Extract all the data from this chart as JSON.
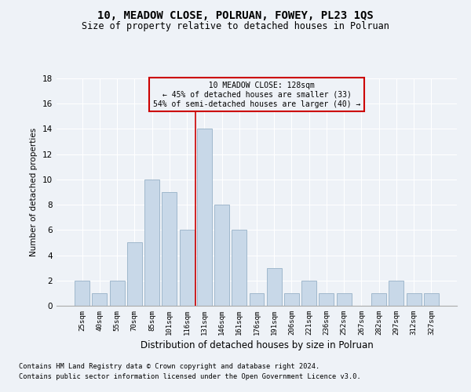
{
  "title": "10, MEADOW CLOSE, POLRUAN, FOWEY, PL23 1QS",
  "subtitle": "Size of property relative to detached houses in Polruan",
  "xlabel": "Distribution of detached houses by size in Polruan",
  "ylabel": "Number of detached properties",
  "bar_color": "#c8d8e8",
  "bar_edgecolor": "#a0b8cc",
  "categories": [
    "25sqm",
    "40sqm",
    "55sqm",
    "70sqm",
    "85sqm",
    "101sqm",
    "116sqm",
    "131sqm",
    "146sqm",
    "161sqm",
    "176sqm",
    "191sqm",
    "206sqm",
    "221sqm",
    "236sqm",
    "252sqm",
    "267sqm",
    "282sqm",
    "297sqm",
    "312sqm",
    "327sqm"
  ],
  "values": [
    2,
    1,
    2,
    5,
    10,
    9,
    6,
    14,
    8,
    6,
    1,
    3,
    1,
    2,
    1,
    1,
    0,
    1,
    2,
    1,
    1
  ],
  "ylim": [
    0,
    18
  ],
  "yticks": [
    0,
    2,
    4,
    6,
    8,
    10,
    12,
    14,
    16,
    18
  ],
  "annotation_line1": "  10 MEADOW CLOSE: 128sqm",
  "annotation_line2": "← 45% of detached houses are smaller (33)",
  "annotation_line3": "54% of semi-detached houses are larger (40) →",
  "footnote1": "Contains HM Land Registry data © Crown copyright and database right 2024.",
  "footnote2": "Contains public sector information licensed under the Open Government Licence v3.0.",
  "background_color": "#eef2f7",
  "grid_color": "#ffffff",
  "title_fontsize": 10,
  "subtitle_fontsize": 8.5,
  "annotation_box_edgecolor": "#cc0000",
  "vline_color": "#cc0000",
  "vline_x": 6.5
}
